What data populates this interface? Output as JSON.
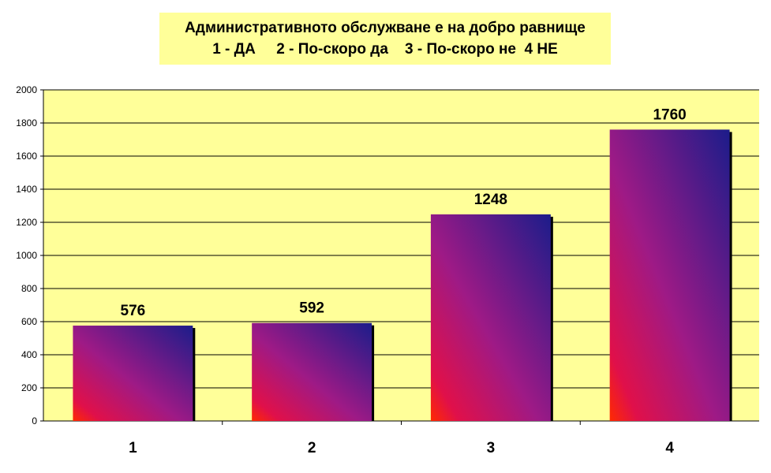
{
  "chart_data": {
    "type": "bar",
    "title": "Административното обслужване е на добро равнище",
    "subtitle": "1 - ДА     2 - По-скоро да    3 - По-скоро не  4 НЕ",
    "categories": [
      "1",
      "2",
      "3",
      "4"
    ],
    "values": [
      576,
      592,
      1248,
      1760
    ],
    "data_labels": [
      "576",
      "592",
      "1248",
      "1760"
    ],
    "ylim": [
      0,
      2000
    ],
    "yticks": [
      "0",
      "200",
      "400",
      "600",
      "800",
      "1000",
      "1200",
      "1400",
      "1600",
      "1800",
      "2000"
    ],
    "grid": true,
    "legend": "none",
    "colors": {
      "plot_background": "#ffff99",
      "bar_gradient": [
        "#ff0000",
        "#9b1a8c",
        "#1a1a8c"
      ]
    }
  }
}
